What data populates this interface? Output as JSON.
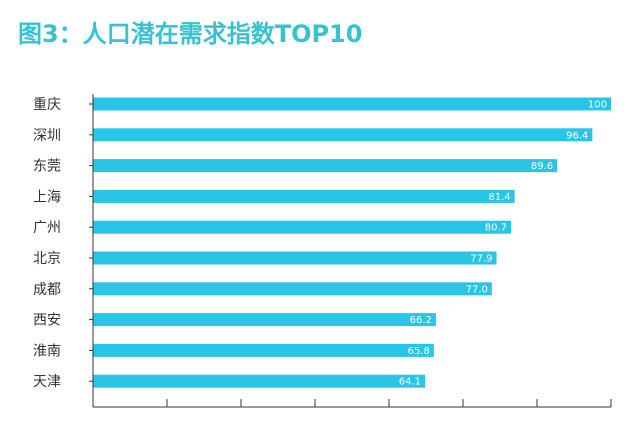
{
  "title": "图3：人口潜在需求指数TOP10",
  "colors": {
    "title": "#36c2cf",
    "bar": "#29c5e6",
    "axis": "#333333"
  },
  "chart_data": {
    "type": "bar",
    "orientation": "horizontal",
    "categories": [
      "重庆",
      "深圳",
      "东莞",
      "上海",
      "广州",
      "北京",
      "成都",
      "西安",
      "淮南",
      "天津"
    ],
    "values": [
      100,
      96.4,
      89.6,
      81.4,
      80.7,
      77.9,
      77.0,
      66.2,
      65.8,
      64.1
    ],
    "value_labels": [
      "100",
      "96.4",
      "89.6",
      "81.4",
      "80.7",
      "77.9",
      "77.0",
      "66.2",
      "65.8",
      "64.1"
    ],
    "title": "图3：人口潜在需求指数TOP10",
    "xlabel": "",
    "ylabel": "",
    "xlim": [
      0,
      100
    ],
    "x_ticks": 7,
    "grid": false,
    "legend": "none"
  }
}
